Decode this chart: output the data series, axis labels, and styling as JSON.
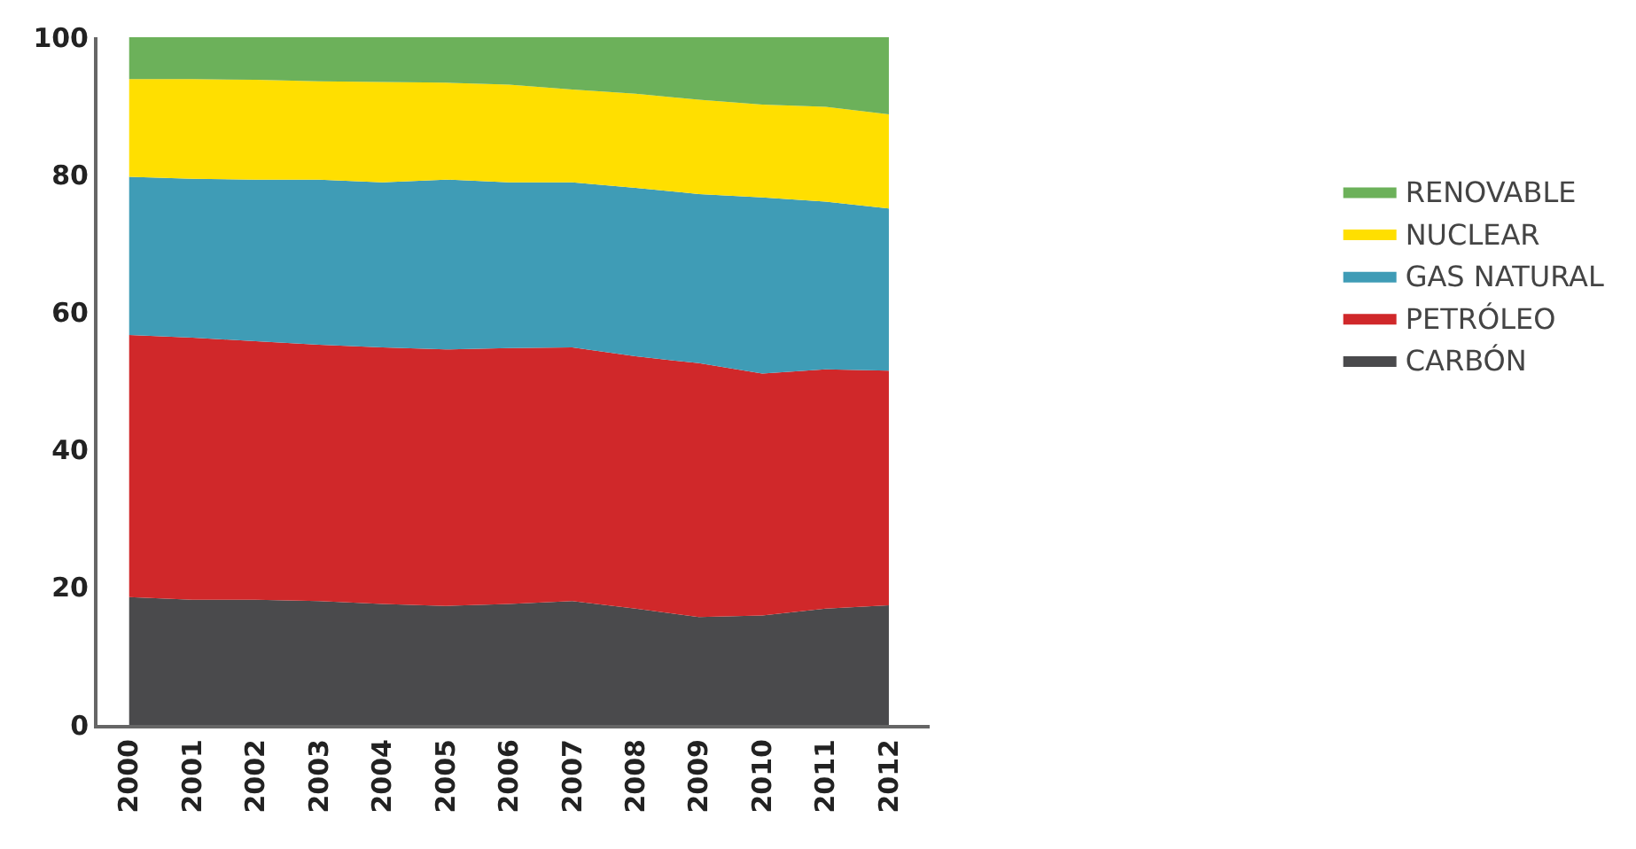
{
  "chart_data": {
    "type": "area",
    "stacked": true,
    "categories": [
      "2000",
      "2001",
      "2002",
      "2003",
      "2004",
      "2005",
      "2006",
      "2007",
      "2008",
      "2009",
      "2010",
      "2011",
      "2012"
    ],
    "series": [
      {
        "name": "CARBÓN",
        "color": "#4a4a4c",
        "values": [
          18.6,
          18.2,
          18.2,
          18.0,
          17.6,
          17.3,
          17.6,
          18.0,
          16.9,
          15.7,
          15.9,
          16.9,
          17.4
        ]
      },
      {
        "name": "PETRÓLEO",
        "color": "#d0282a",
        "values": [
          38.1,
          38.1,
          37.6,
          37.3,
          37.3,
          37.3,
          37.2,
          36.9,
          36.7,
          36.9,
          35.2,
          34.8,
          34.1
        ]
      },
      {
        "name": "GAS NATURAL",
        "color": "#3f9cb6",
        "values": [
          23.0,
          23.1,
          23.5,
          24.0,
          24.0,
          24.7,
          24.1,
          24.0,
          24.5,
          24.6,
          25.6,
          24.4,
          23.6
        ]
      },
      {
        "name": "NUCLEAR",
        "color": "#ffdf00",
        "values": [
          14.2,
          14.5,
          14.5,
          14.3,
          14.6,
          14.1,
          14.2,
          13.5,
          13.7,
          13.7,
          13.5,
          13.8,
          13.7
        ]
      },
      {
        "name": "RENOVABLE",
        "color": "#6cb15a",
        "values": [
          6.1,
          6.1,
          6.2,
          6.4,
          6.5,
          6.6,
          6.9,
          7.6,
          8.2,
          9.1,
          9.8,
          10.1,
          11.2
        ]
      }
    ],
    "ylim": [
      0,
      100
    ],
    "yticks": [
      0,
      20,
      40,
      60,
      80,
      100
    ],
    "legend": "right"
  }
}
